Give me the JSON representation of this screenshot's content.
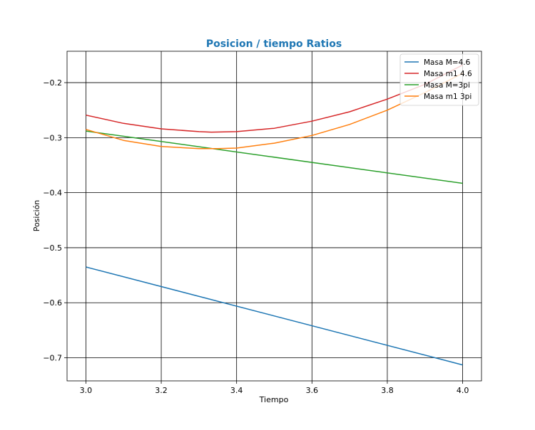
{
  "chart_data": {
    "type": "line",
    "title": "Posicion / tiempo Ratios",
    "title_color": "#1f77b4",
    "xlabel": "Tiempo",
    "ylabel": "Posición",
    "xlim": [
      2.95,
      4.05
    ],
    "ylim": [
      -0.742,
      -0.143
    ],
    "xticks": [
      3.0,
      3.2,
      3.4,
      3.6,
      3.8,
      4.0
    ],
    "xtick_labels": [
      "3.0",
      "3.2",
      "3.4",
      "3.6",
      "3.8",
      "4.0"
    ],
    "yticks": [
      -0.2,
      -0.3,
      -0.4,
      -0.5,
      -0.6,
      -0.7
    ],
    "ytick_labels": [
      "−0.2",
      "−0.3",
      "−0.4",
      "−0.5",
      "−0.6",
      "−0.7"
    ],
    "grid": true,
    "grid_color": "#000000",
    "legend_position": "top-right",
    "series": [
      {
        "name": "Masa M=4.6",
        "color": "#1f77b4",
        "x": [
          3.0,
          4.0
        ],
        "y": [
          -0.535,
          -0.713
        ]
      },
      {
        "name": "Masa m1 4.6",
        "color": "#d62728",
        "x": [
          3.0,
          3.1,
          3.2,
          3.3,
          3.333,
          3.4,
          3.5,
          3.6,
          3.7,
          3.8,
          3.9,
          4.0
        ],
        "y": [
          -0.259,
          -0.274,
          -0.284,
          -0.289,
          -0.29,
          -0.289,
          -0.283,
          -0.27,
          -0.253,
          -0.23,
          -0.203,
          -0.168
        ]
      },
      {
        "name": "Masa M=3pi",
        "color": "#2ca02c",
        "x": [
          3.0,
          4.0
        ],
        "y": [
          -0.288,
          -0.383
        ]
      },
      {
        "name": "Masa m1 3pi",
        "color": "#ff7f0e",
        "x": [
          3.0,
          3.1,
          3.2,
          3.3,
          3.35,
          3.4,
          3.5,
          3.6,
          3.7,
          3.8,
          3.9,
          4.0
        ],
        "y": [
          -0.285,
          -0.305,
          -0.316,
          -0.32,
          -0.32,
          -0.319,
          -0.31,
          -0.296,
          -0.276,
          -0.25,
          -0.218,
          -0.183
        ]
      }
    ]
  }
}
